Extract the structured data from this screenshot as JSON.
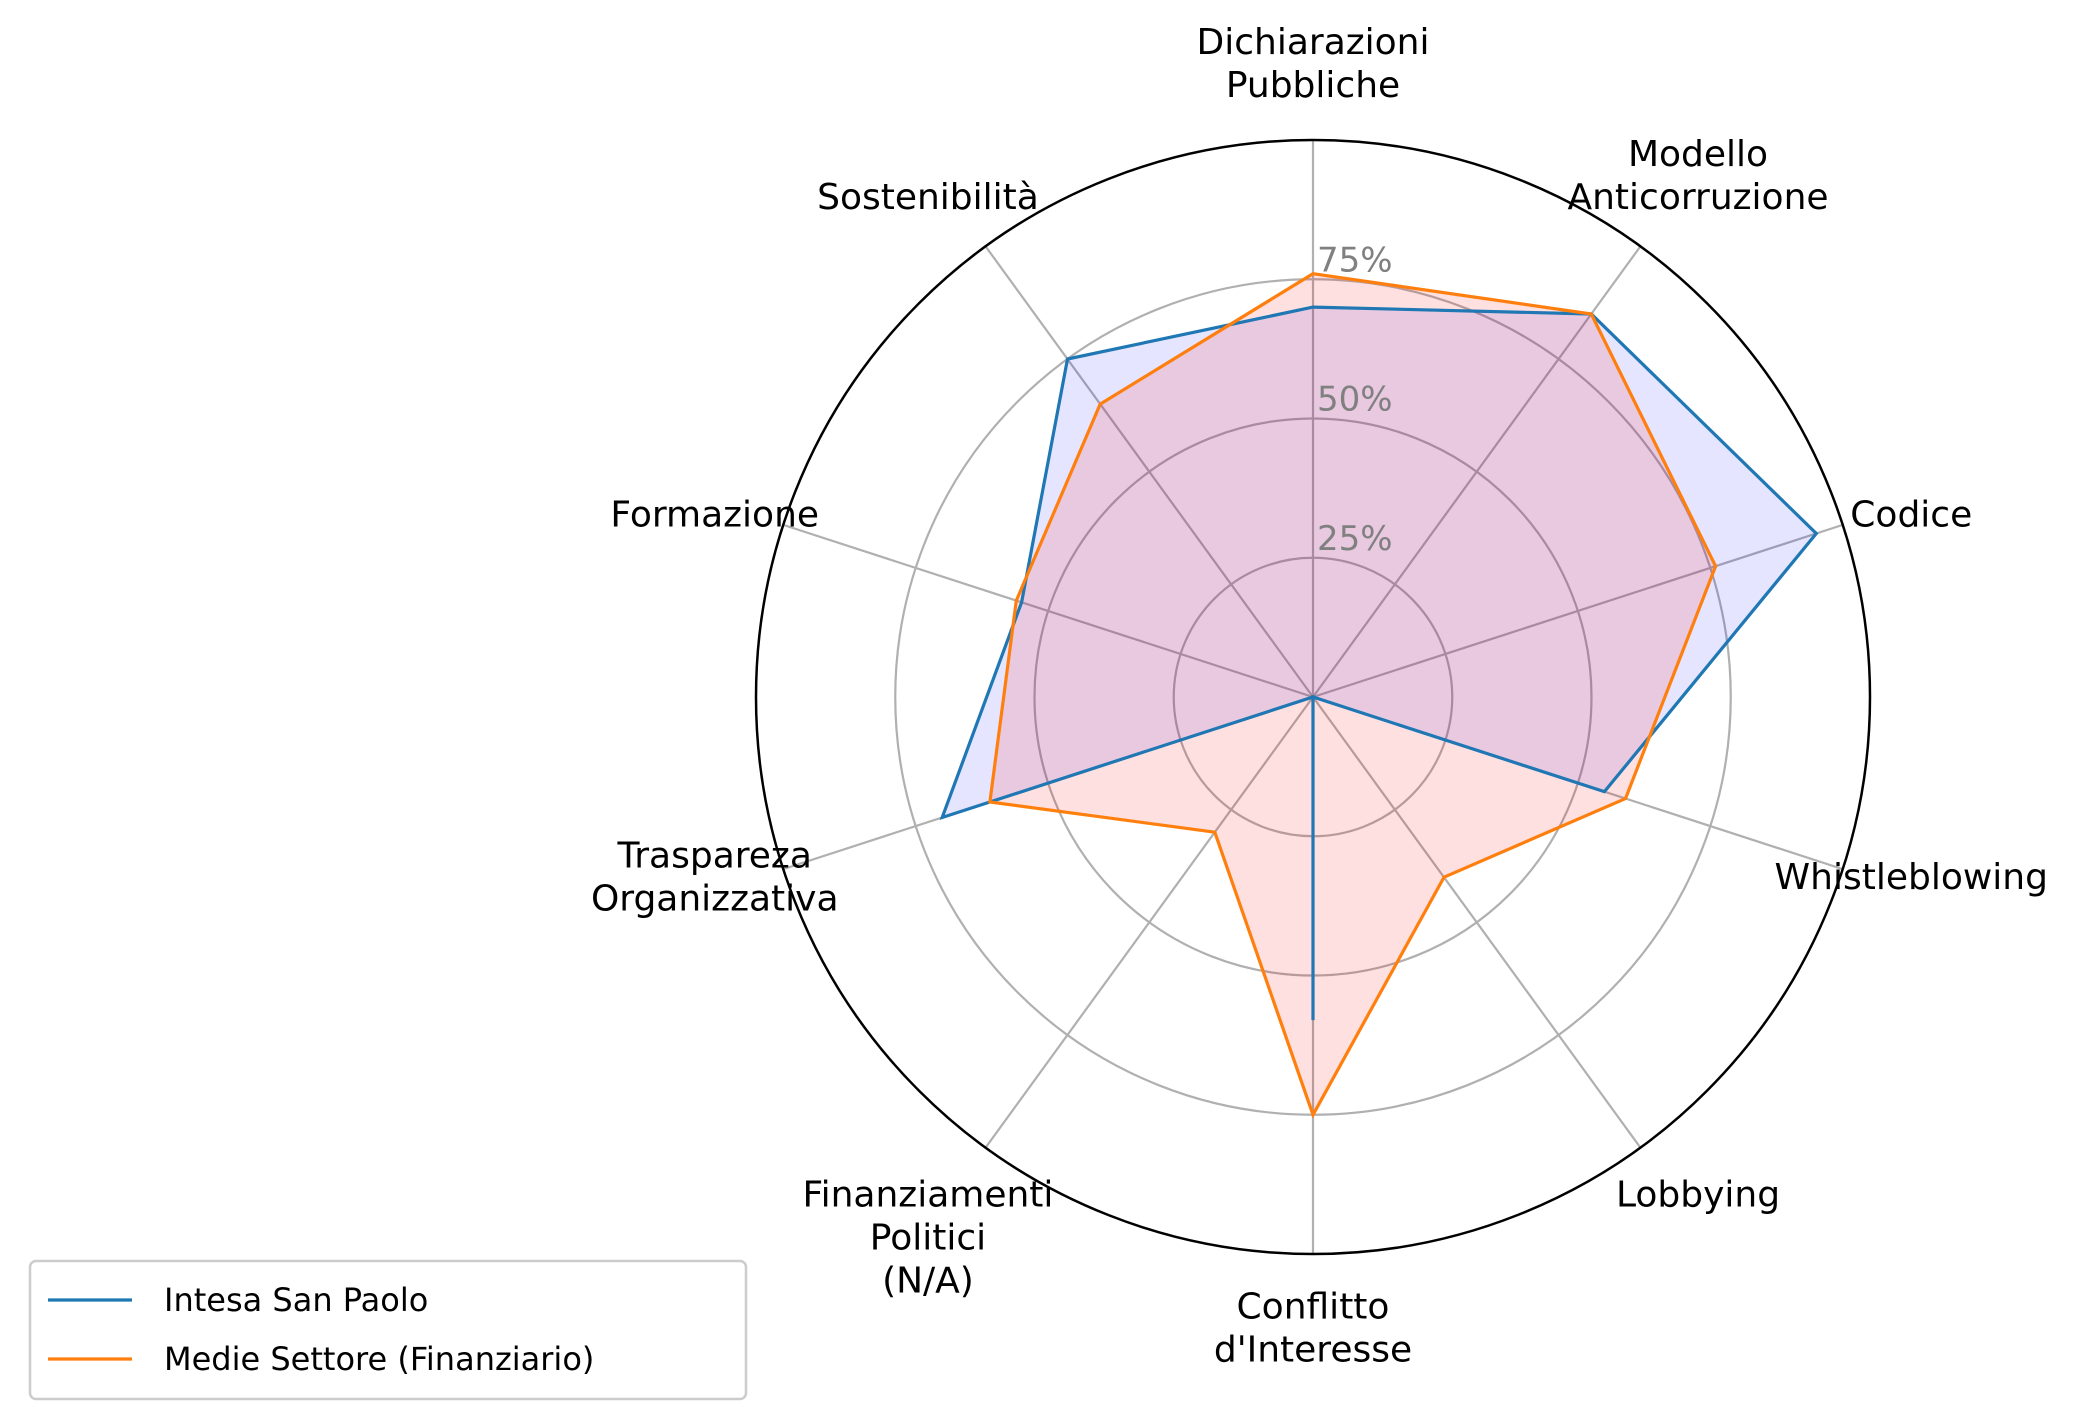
{
  "chart_data": {
    "type": "radar",
    "axes": [
      [
        "Dichiarazioni",
        "Pubbliche"
      ],
      [
        "Modello",
        "Anticorruzione"
      ],
      [
        "Codice"
      ],
      [
        "Whistleblowing"
      ],
      [
        "Lobbying"
      ],
      [
        "Conflitto",
        "d'Interesse"
      ],
      [
        "Finanziamenti",
        "Politici",
        "(N/A)"
      ],
      [
        "Traspareza",
        "Organizzativa"
      ],
      [
        "Formazione"
      ],
      [
        "Sostenibilità"
      ]
    ],
    "rlim": [
      0,
      100
    ],
    "ticks": [
      25,
      50,
      75
    ],
    "tick_labels": [
      "25%",
      "50%",
      "75%"
    ],
    "grid": true,
    "legend_position": "lower-left",
    "series": [
      {
        "name": "Intesa San Paolo",
        "values": [
          70,
          85,
          95,
          55,
          0,
          58,
          0,
          70,
          55,
          75
        ],
        "color": "#1f77b4",
        "fill": "#0000ff",
        "fill_opacity": 0.1
      },
      {
        "name": "Medie Settore (Finanziario)",
        "values": [
          76,
          85,
          76,
          59,
          40,
          75,
          30,
          61,
          56,
          65
        ],
        "color": "#ff7f0e",
        "fill": "#ff0000",
        "fill_opacity": 0.12
      }
    ]
  }
}
